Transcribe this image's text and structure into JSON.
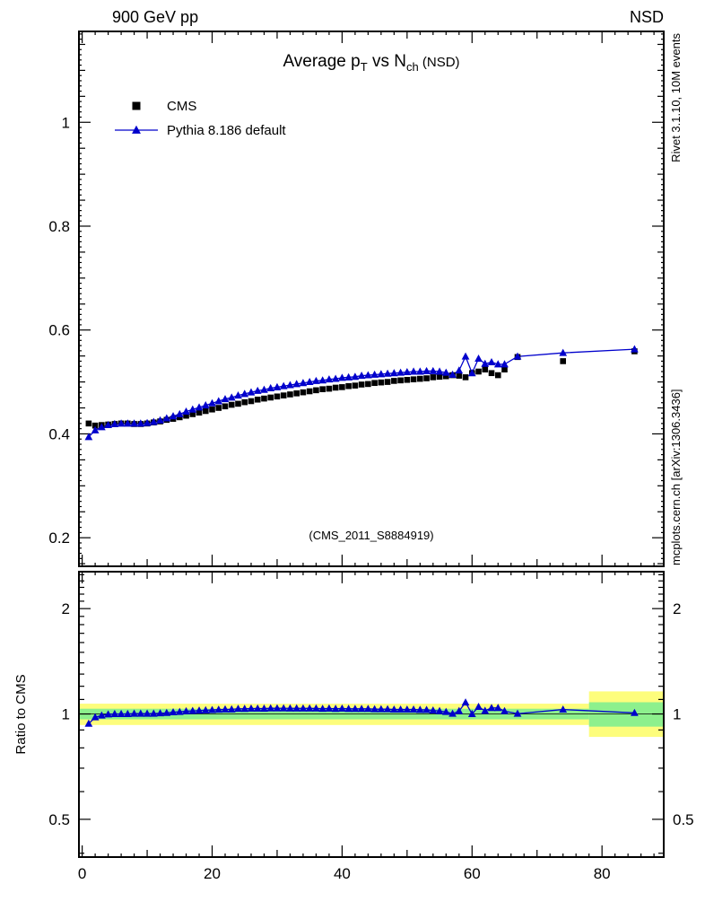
{
  "chart_data": {
    "type": "scatter",
    "title_text": "Average pT vs Nch (NSD)",
    "title_parts": [
      {
        "t": "Average p"
      },
      {
        "t": "T",
        "sub": true
      },
      {
        "t": " vs N"
      },
      {
        "t": "ch",
        "sub": true
      },
      {
        "t": " (NSD)",
        "small": true
      }
    ],
    "top_left_label": "900 GeV pp",
    "top_right_label": "NSD",
    "watermark": "(CMS_2011_S8884919)",
    "ratio_ylabel": "Ratio to CMS",
    "right_margin_labels": {
      "top": "Rivet 3.1.10, 10M events",
      "bottom": "mcplots.cern.ch [arXiv:1306.3436]"
    },
    "x": {
      "lim": [
        -0.5,
        89.5
      ],
      "ticks": [
        0,
        20,
        40,
        60,
        80
      ],
      "tick_labels": [
        "0",
        "20",
        "40",
        "60",
        "80"
      ]
    },
    "main_axis": {
      "lim": [
        0.145,
        1.175
      ],
      "ticks": [
        0.2,
        0.4,
        0.6,
        0.8,
        1.0
      ],
      "tick_labels": [
        "0.2",
        "0.4",
        "0.6",
        "0.8",
        "1"
      ],
      "minor_step": 0.05,
      "micro_step": 0.01
    },
    "ratio_axis": {
      "scale": "log",
      "lim": [
        0.39,
        2.55
      ],
      "ticks": [
        0.5,
        1,
        2
      ],
      "tick_labels": [
        "0.5",
        "1",
        "2"
      ]
    },
    "legend": [
      {
        "label": "CMS",
        "marker": "square",
        "color": "#000000",
        "line": false
      },
      {
        "label": "Pythia 8.186 default",
        "marker": "triangle",
        "color": "#0000cc",
        "line": true
      }
    ],
    "series": {
      "cms": {
        "name": "CMS",
        "color": "#000000",
        "x": [
          1,
          2,
          3,
          4,
          5,
          6,
          7,
          8,
          9,
          10,
          11,
          12,
          13,
          14,
          15,
          16,
          17,
          18,
          19,
          20,
          21,
          22,
          23,
          24,
          25,
          26,
          27,
          28,
          29,
          30,
          31,
          32,
          33,
          34,
          35,
          36,
          37,
          38,
          39,
          40,
          41,
          42,
          43,
          44,
          45,
          46,
          47,
          48,
          49,
          50,
          51,
          52,
          53,
          54,
          55,
          56,
          57,
          58,
          59,
          60,
          61,
          62,
          63,
          64,
          65,
          67,
          74,
          85
        ],
        "y": [
          0.42,
          0.416,
          0.417,
          0.418,
          0.419,
          0.42,
          0.42,
          0.419,
          0.419,
          0.42,
          0.422,
          0.424,
          0.427,
          0.429,
          0.432,
          0.435,
          0.438,
          0.441,
          0.444,
          0.447,
          0.45,
          0.453,
          0.456,
          0.458,
          0.461,
          0.463,
          0.466,
          0.468,
          0.47,
          0.472,
          0.474,
          0.476,
          0.478,
          0.48,
          0.482,
          0.484,
          0.486,
          0.487,
          0.489,
          0.49,
          0.492,
          0.493,
          0.495,
          0.496,
          0.498,
          0.499,
          0.5,
          0.502,
          0.503,
          0.504,
          0.505,
          0.506,
          0.507,
          0.509,
          0.51,
          0.511,
          0.513,
          0.512,
          0.509,
          0.517,
          0.52,
          0.524,
          0.517,
          0.513,
          0.524,
          0.548,
          0.54,
          0.559
        ]
      },
      "pythia": {
        "name": "Pythia 8.186 default",
        "color": "#0000cc",
        "x": [
          1,
          2,
          3,
          4,
          5,
          6,
          7,
          8,
          9,
          10,
          11,
          12,
          13,
          14,
          15,
          16,
          17,
          18,
          19,
          20,
          21,
          22,
          23,
          24,
          25,
          26,
          27,
          28,
          29,
          30,
          31,
          32,
          33,
          34,
          35,
          36,
          37,
          38,
          39,
          40,
          41,
          42,
          43,
          44,
          45,
          46,
          47,
          48,
          49,
          50,
          51,
          52,
          53,
          54,
          55,
          56,
          57,
          58,
          59,
          60,
          61,
          62,
          63,
          64,
          65,
          67,
          74,
          85
        ],
        "y": [
          0.394,
          0.407,
          0.413,
          0.417,
          0.419,
          0.42,
          0.42,
          0.42,
          0.42,
          0.421,
          0.423,
          0.426,
          0.43,
          0.434,
          0.438,
          0.443,
          0.447,
          0.451,
          0.455,
          0.459,
          0.463,
          0.467,
          0.47,
          0.474,
          0.477,
          0.48,
          0.483,
          0.485,
          0.488,
          0.49,
          0.492,
          0.494,
          0.496,
          0.498,
          0.5,
          0.502,
          0.503,
          0.505,
          0.506,
          0.508,
          0.509,
          0.51,
          0.512,
          0.513,
          0.514,
          0.515,
          0.516,
          0.517,
          0.518,
          0.519,
          0.52,
          0.52,
          0.521,
          0.521,
          0.52,
          0.518,
          0.514,
          0.522,
          0.549,
          0.517,
          0.545,
          0.535,
          0.538,
          0.534,
          0.534,
          0.549,
          0.556,
          0.563
        ]
      }
    },
    "ratio": {
      "reference": 1.0,
      "bands": {
        "yellow": {
          "color": "#fdfd7c",
          "segments": [
            {
              "x0": -0.5,
              "x1": 78,
              "lo": 0.93,
              "hi": 1.07
            },
            {
              "x0": 78,
              "x1": 89.5,
              "lo": 0.86,
              "hi": 1.16
            }
          ]
        },
        "green": {
          "color": "#8df08d",
          "segments": [
            {
              "x0": -0.5,
              "x1": 78,
              "lo": 0.965,
              "hi": 1.035
            },
            {
              "x0": 78,
              "x1": 89.5,
              "lo": 0.92,
              "hi": 1.08
            }
          ]
        }
      }
    }
  }
}
